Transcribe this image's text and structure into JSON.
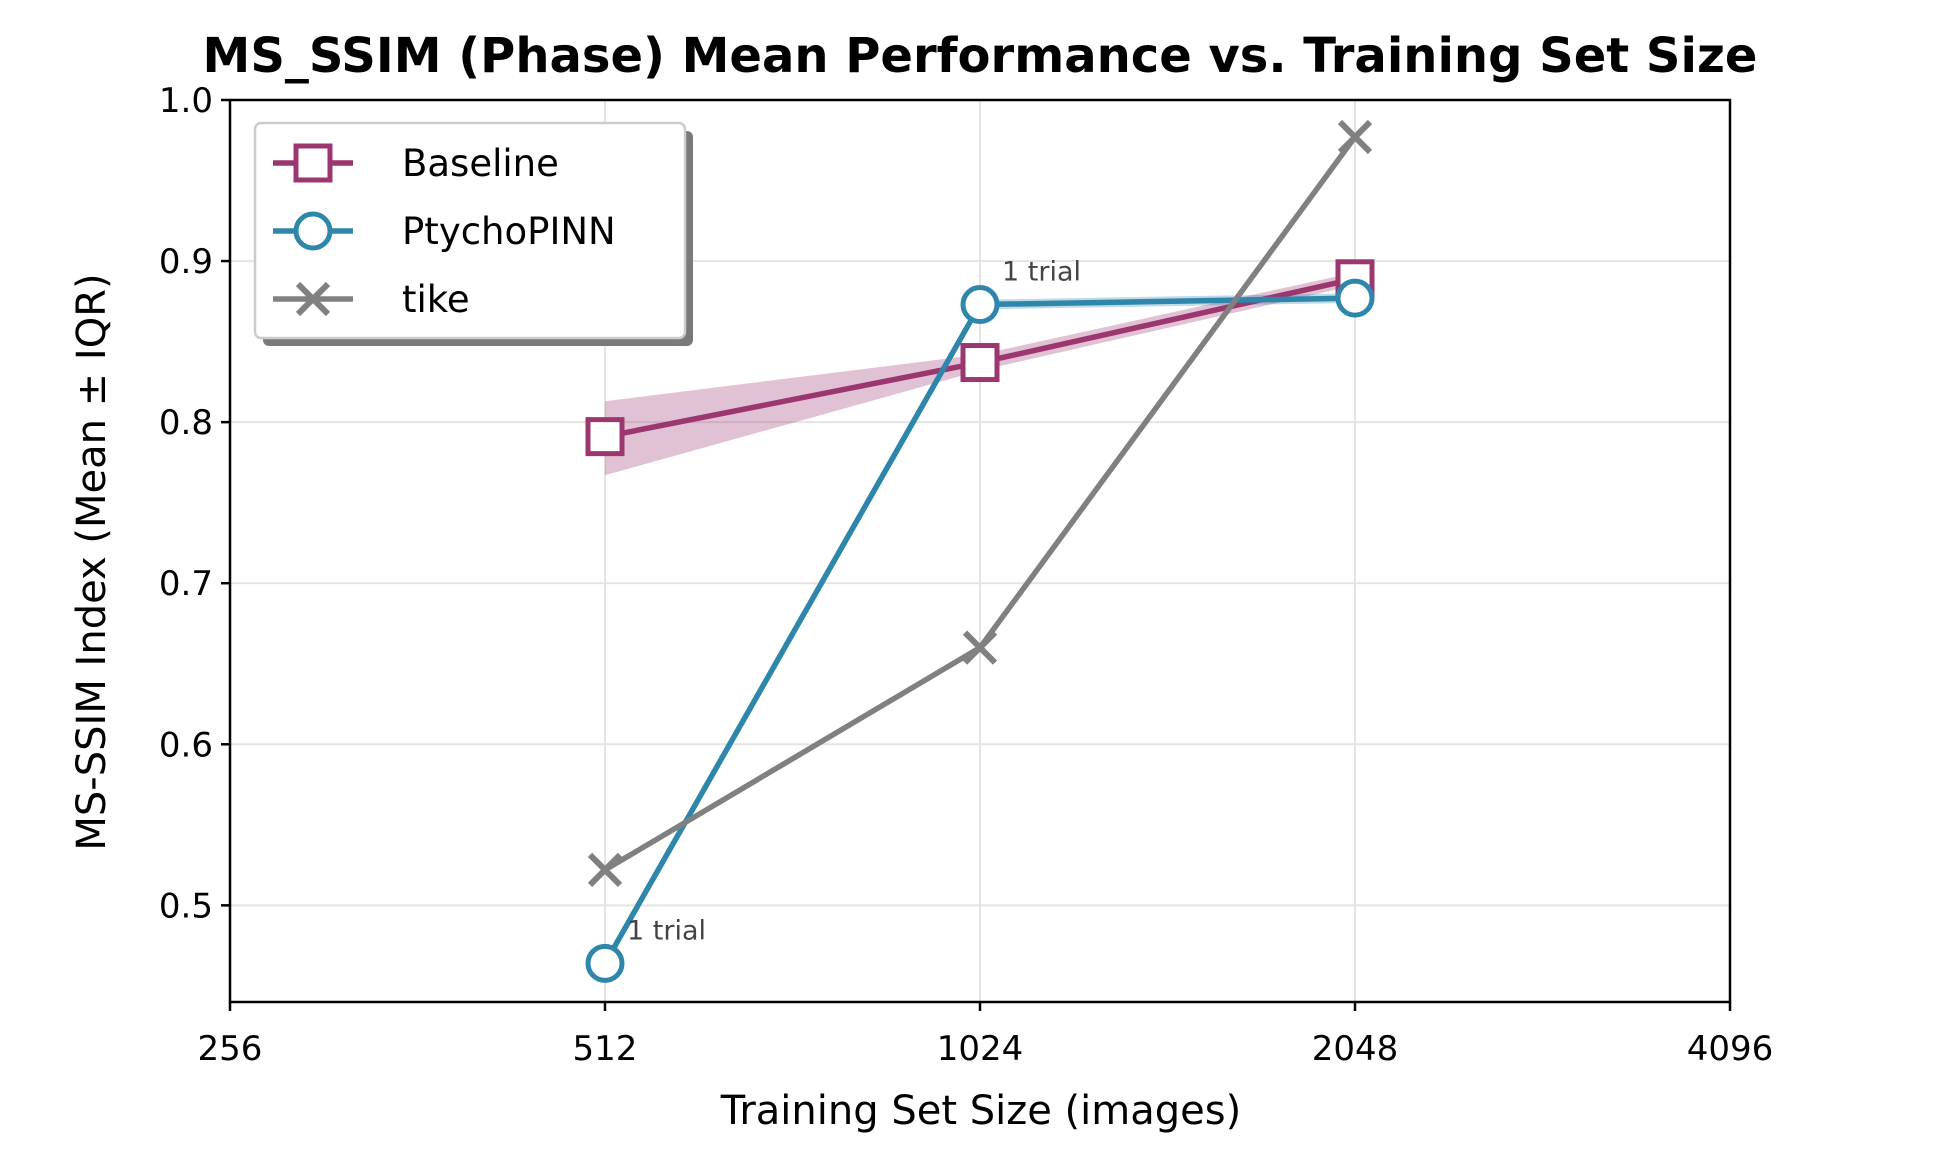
{
  "chart_data": {
    "type": "line",
    "title": "MS_SSIM (Phase) Mean Performance vs. Training Set Size",
    "xlabel": "Training Set Size (images)",
    "ylabel": "MS-SSIM Index (Mean ± IQR)",
    "x_scale": "log2",
    "xlim": [
      256,
      4096
    ],
    "ylim": [
      0.44,
      1.0
    ],
    "x_ticks": [
      256,
      512,
      1024,
      2048,
      4096
    ],
    "x_tick_labels": [
      "256",
      "512",
      "1024",
      "2048",
      "4096"
    ],
    "y_ticks": [
      0.5,
      0.6,
      0.7,
      0.8,
      0.9,
      1.0
    ],
    "y_tick_labels": [
      "0.5",
      "0.6",
      "0.7",
      "0.8",
      "0.9",
      "1.0"
    ],
    "grid": true,
    "legend_position": "top-left",
    "series": [
      {
        "name": "Baseline",
        "color": "#9b366f",
        "marker": "square",
        "x": [
          512,
          1024,
          2048
        ],
        "y": [
          0.791,
          0.837,
          0.889
        ],
        "iqr_low": [
          0.767,
          0.832,
          0.885
        ],
        "iqr_high": [
          0.813,
          0.842,
          0.893
        ]
      },
      {
        "name": "PtychoPINN",
        "color": "#2e86ab",
        "marker": "circle",
        "x": [
          512,
          1024,
          2048
        ],
        "y": [
          0.464,
          0.873,
          0.877
        ],
        "iqr_low": [
          0.464,
          0.87,
          0.874
        ],
        "iqr_high": [
          0.464,
          0.876,
          0.88
        ]
      },
      {
        "name": "tike",
        "color": "#808080",
        "marker": "x",
        "x": [
          512,
          1024,
          2048
        ],
        "y": [
          0.522,
          0.66,
          0.977
        ]
      }
    ],
    "annotations": [
      {
        "text": "1 trial",
        "x": 512,
        "y": 0.464
      },
      {
        "text": "1 trial",
        "x": 1024,
        "y": 0.873
      }
    ]
  }
}
